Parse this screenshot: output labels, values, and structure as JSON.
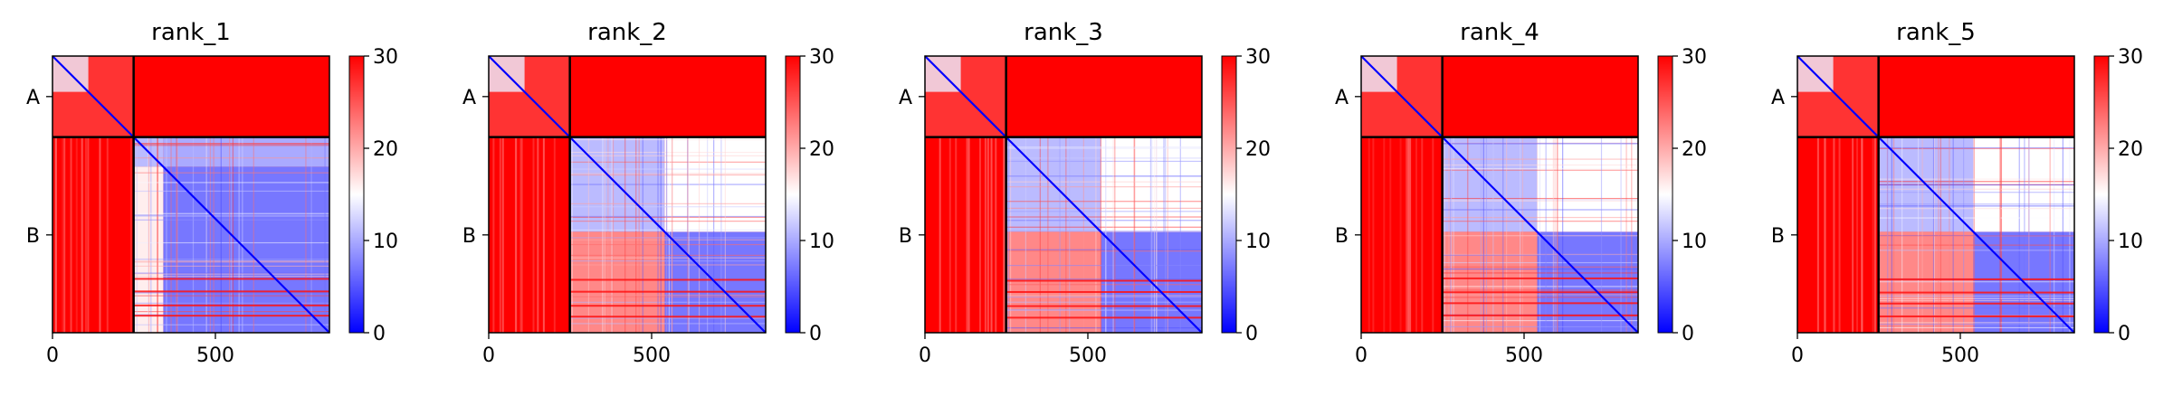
{
  "chart_data": [
    {
      "type": "heatmap",
      "title": "rank_1",
      "xlabel": "",
      "ylabel": "",
      "x_ticks": [
        0,
        500
      ],
      "y_tick_labels": [
        "A",
        "B"
      ],
      "segments": [
        {
          "name": "A",
          "start": 0,
          "end": 249
        },
        {
          "name": "B",
          "start": 249,
          "end": 850
        }
      ],
      "xlim": [
        0,
        850
      ],
      "colorbar": {
        "min": 0,
        "max": 30,
        "ticks": [
          0,
          10,
          20,
          30
        ],
        "colormap": "bwr"
      },
      "blocks_B": [
        {
          "start": 249,
          "end": 340
        },
        {
          "start": 340,
          "end": 850
        }
      ]
    },
    {
      "type": "heatmap",
      "title": "rank_2",
      "xlabel": "",
      "ylabel": "",
      "x_ticks": [
        0,
        500
      ],
      "y_tick_labels": [
        "A",
        "B"
      ],
      "segments": [
        {
          "name": "A",
          "start": 0,
          "end": 249
        },
        {
          "name": "B",
          "start": 249,
          "end": 850
        }
      ],
      "xlim": [
        0,
        850
      ],
      "colorbar": {
        "min": 0,
        "max": 30,
        "ticks": [
          0,
          10,
          20,
          30
        ],
        "colormap": "bwr"
      },
      "blocks_B": [
        {
          "start": 249,
          "end": 540
        },
        {
          "start": 540,
          "end": 850
        }
      ]
    },
    {
      "type": "heatmap",
      "title": "rank_3",
      "xlabel": "",
      "ylabel": "",
      "x_ticks": [
        0,
        500
      ],
      "y_tick_labels": [
        "A",
        "B"
      ],
      "segments": [
        {
          "name": "A",
          "start": 0,
          "end": 249
        },
        {
          "name": "B",
          "start": 249,
          "end": 850
        }
      ],
      "xlim": [
        0,
        850
      ],
      "colorbar": {
        "min": 0,
        "max": 30,
        "ticks": [
          0,
          10,
          20,
          30
        ],
        "colormap": "bwr"
      },
      "blocks_B": [
        {
          "start": 249,
          "end": 540
        },
        {
          "start": 540,
          "end": 850
        }
      ]
    },
    {
      "type": "heatmap",
      "title": "rank_4",
      "xlabel": "",
      "ylabel": "",
      "x_ticks": [
        0,
        500
      ],
      "y_tick_labels": [
        "A",
        "B"
      ],
      "segments": [
        {
          "name": "A",
          "start": 0,
          "end": 249
        },
        {
          "name": "B",
          "start": 249,
          "end": 850
        }
      ],
      "xlim": [
        0,
        850
      ],
      "colorbar": {
        "min": 0,
        "max": 30,
        "ticks": [
          0,
          10,
          20,
          30
        ],
        "colormap": "bwr"
      },
      "blocks_B": [
        {
          "start": 249,
          "end": 540
        },
        {
          "start": 540,
          "end": 850
        }
      ]
    },
    {
      "type": "heatmap",
      "title": "rank_5",
      "xlabel": "",
      "ylabel": "",
      "x_ticks": [
        0,
        500
      ],
      "y_tick_labels": [
        "A",
        "B"
      ],
      "segments": [
        {
          "name": "A",
          "start": 0,
          "end": 249
        },
        {
          "name": "B",
          "start": 249,
          "end": 850
        }
      ],
      "xlim": [
        0,
        850
      ],
      "colorbar": {
        "min": 0,
        "max": 30,
        "ticks": [
          0,
          10,
          20,
          30
        ],
        "colormap": "bwr"
      },
      "blocks_B": [
        {
          "start": 249,
          "end": 540
        },
        {
          "start": 540,
          "end": 850
        }
      ]
    }
  ],
  "colors": {
    "low": "#0000ff",
    "mid": "#ffffff",
    "high": "#ff0000",
    "boundary": "#000000"
  }
}
